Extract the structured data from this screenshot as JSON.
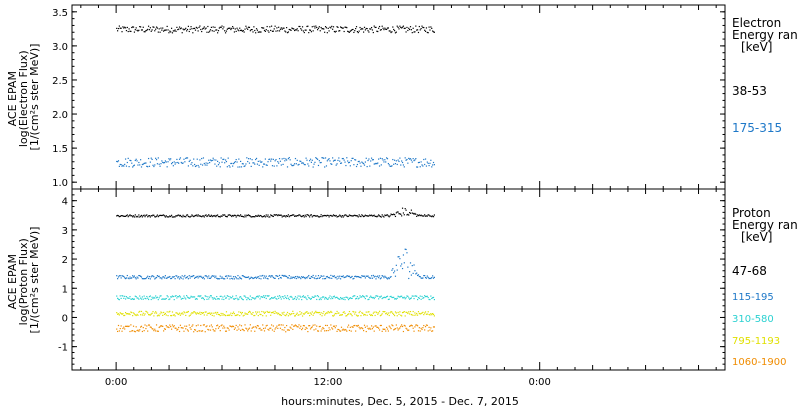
{
  "chart_data": [
    {
      "type": "scatter",
      "panel": "electron",
      "ylabel_lines": [
        "ACE EPAM",
        "log(Electron Flux)",
        "[1/(cm²s ster MeV)]"
      ],
      "ylim": [
        0.9,
        3.6
      ],
      "yticks": [
        1.0,
        1.5,
        2.0,
        2.5,
        3.0,
        3.5
      ],
      "ytick_labels": [
        "1.0",
        "1.5",
        "2.0",
        "2.5",
        "3.0",
        "3.5"
      ],
      "legend_title_lines": [
        "Electron",
        "Energy ran",
        "[keV]"
      ],
      "series": [
        {
          "name": "38-53",
          "color": "#000000",
          "x_start": 0,
          "x_end": 18,
          "mean": 3.25,
          "jitter": 0.05
        },
        {
          "name": "175-315",
          "color": "#1e78c8",
          "x_start": 0,
          "x_end": 18,
          "mean": 1.3,
          "jitter": 0.07
        }
      ]
    },
    {
      "type": "scatter",
      "panel": "proton",
      "ylabel_lines": [
        "ACE EPAM",
        "log(Proton Flux)",
        "[1/(cm²s ster MeV)]"
      ],
      "ylim": [
        -1.8,
        4.4
      ],
      "yticks": [
        -1,
        0,
        1,
        2,
        3,
        4
      ],
      "ytick_labels": [
        "-1",
        "0",
        "1",
        "2",
        "3",
        "4"
      ],
      "legend_title_lines": [
        "Proton",
        "Energy ran",
        "[keV]"
      ],
      "series": [
        {
          "name": "47-68",
          "color": "#000000",
          "x_start": 0,
          "x_end": 18,
          "mean": 3.5,
          "jitter": 0.04
        },
        {
          "name": "115-195",
          "color": "#1e78c8",
          "x_start": 0,
          "x_end": 18,
          "mean": 1.4,
          "jitter": 0.06
        },
        {
          "name": "310-580",
          "color": "#2bd1d1",
          "x_start": 0,
          "x_end": 18,
          "mean": 0.7,
          "jitter": 0.07
        },
        {
          "name": "795-1193",
          "color": "#e0e000",
          "x_start": 0,
          "x_end": 18,
          "mean": 0.15,
          "jitter": 0.08
        },
        {
          "name": "1060-1900",
          "color": "#f08c00",
          "x_start": 0,
          "x_end": 18,
          "mean": -0.35,
          "jitter": 0.12
        }
      ]
    }
  ],
  "x_axis": {
    "xlim": [
      -2.5,
      34.5
    ],
    "ticks": [
      0,
      12,
      24
    ],
    "tick_labels": [
      "0:00",
      "12:00",
      "0:00"
    ],
    "xlabel": "hours:minutes, Dec.  5, 2015 - Dec.  7, 2015"
  }
}
